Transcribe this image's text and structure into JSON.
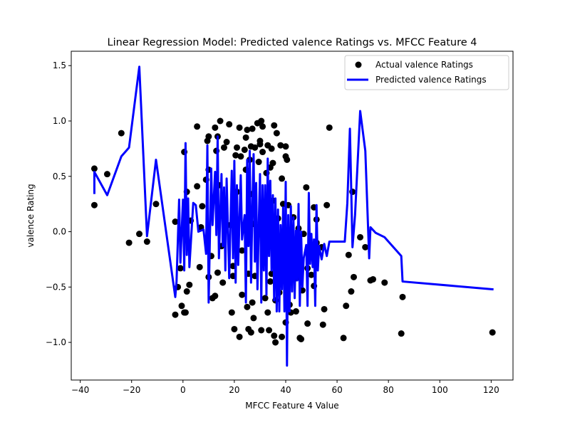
{
  "chart_data": {
    "type": "scatter",
    "title": "Linear Regression Model: Predicted valence Ratings vs. MFCC Feature 4",
    "xlabel": "MFCC Feature 4 Value",
    "ylabel": "valence Rating",
    "xlim": [
      -43.5,
      128.5
    ],
    "ylim": [
      -1.34,
      1.63
    ],
    "xticks": [
      -40,
      -20,
      0,
      20,
      40,
      60,
      80,
      100,
      120
    ],
    "yticks": [
      -1.0,
      -0.5,
      0.0,
      0.5,
      1.0,
      1.5
    ],
    "xtick_labels": [
      "−40",
      "−20",
      "0",
      "20",
      "40",
      "60",
      "80",
      "100",
      "120"
    ],
    "ytick_labels": [
      "−1.0",
      "−0.5",
      "0.0",
      "0.5",
      "1.0",
      "1.5"
    ],
    "grid": false,
    "legend_position": "top-right",
    "colors": {
      "actual": "#000000",
      "predicted": "#0000ff"
    },
    "series": [
      {
        "name": "Actual valence Ratings",
        "kind": "scatter",
        "points": [
          [
            -34.5,
            0.57
          ],
          [
            -34.5,
            0.24
          ],
          [
            -29.5,
            0.52
          ],
          [
            -24,
            0.89
          ],
          [
            -21,
            -0.1
          ],
          [
            -17,
            -0.02
          ],
          [
            -14,
            -0.09
          ],
          [
            -10.5,
            0.25
          ],
          [
            -3,
            0.09
          ],
          [
            -3,
            -0.75
          ],
          [
            -2,
            -0.5
          ],
          [
            -1,
            -0.33
          ],
          [
            -0.5,
            -0.67
          ],
          [
            0.5,
            -0.73
          ],
          [
            1,
            -0.73
          ],
          [
            1.5,
            -0.54
          ],
          [
            2.5,
            -0.48
          ],
          [
            0.5,
            0.72
          ],
          [
            1.5,
            0.36
          ],
          [
            3,
            0.1
          ],
          [
            5.5,
            0.95
          ],
          [
            5.5,
            0.41
          ],
          [
            6.5,
            -0.32
          ],
          [
            7,
            0.04
          ],
          [
            7.5,
            0.23
          ],
          [
            9.5,
            0.82
          ],
          [
            10,
            0.86
          ],
          [
            10,
            0.56
          ],
          [
            9,
            0.47
          ],
          [
            10,
            -0.41
          ],
          [
            11,
            -0.22
          ],
          [
            11.5,
            -0.6
          ],
          [
            12.5,
            -0.58
          ],
          [
            12.5,
            0.94
          ],
          [
            13,
            0.73
          ],
          [
            13.5,
            0.86
          ],
          [
            14,
            0.42
          ],
          [
            14.5,
            1.0
          ],
          [
            13.5,
            -0.37
          ],
          [
            15,
            -0.13
          ],
          [
            15.5,
            -0.46
          ],
          [
            16,
            0.76
          ],
          [
            17,
            0.81
          ],
          [
            18,
            0.97
          ],
          [
            18.5,
            0.06
          ],
          [
            19,
            -0.73
          ],
          [
            19.5,
            -0.31
          ],
          [
            19.5,
            -0.4
          ],
          [
            20,
            -0.88
          ],
          [
            20.5,
            0.69
          ],
          [
            21,
            0.76
          ],
          [
            21,
            0.36
          ],
          [
            22,
            0.94
          ],
          [
            22,
            -0.95
          ],
          [
            22.5,
            0.68
          ],
          [
            23,
            -0.17
          ],
          [
            23,
            -0.57
          ],
          [
            24,
            0.74
          ],
          [
            24.5,
            0.85
          ],
          [
            24.5,
            0.56
          ],
          [
            25,
            0.92
          ],
          [
            25,
            -0.68
          ],
          [
            25.5,
            -0.38
          ],
          [
            25.5,
            -0.88
          ],
          [
            26,
            0.65
          ],
          [
            26.5,
            0.77
          ],
          [
            26.5,
            -0.91
          ],
          [
            27,
            0.93
          ],
          [
            27,
            0.34
          ],
          [
            27,
            -0.64
          ],
          [
            27.5,
            0.07
          ],
          [
            27.5,
            -0.78
          ],
          [
            28,
            0.76
          ],
          [
            28,
            -0.4
          ],
          [
            29,
            0.98
          ],
          [
            29.5,
            0.63
          ],
          [
            30,
            0.79
          ],
          [
            30,
            0.82
          ],
          [
            30.5,
            1.0
          ],
          [
            30.5,
            -0.89
          ],
          [
            31,
            0.72
          ],
          [
            31,
            0.95
          ],
          [
            31,
            0.23
          ],
          [
            32,
            -0.6
          ],
          [
            32.5,
            0.53
          ],
          [
            33,
            0.78
          ],
          [
            33,
            -0.73
          ],
          [
            33.5,
            -0.89
          ],
          [
            34,
            0.58
          ],
          [
            34,
            -0.45
          ],
          [
            34.5,
            0.75
          ],
          [
            34.5,
            -0.38
          ],
          [
            35,
            0.62
          ],
          [
            35,
            0.28
          ],
          [
            35.5,
            0.96
          ],
          [
            35.5,
            -0.94
          ],
          [
            36,
            -0.62
          ],
          [
            36,
            -1.0
          ],
          [
            36.5,
            0.89
          ],
          [
            37,
            0.12
          ],
          [
            37.5,
            -0.55
          ],
          [
            38,
            0.78
          ],
          [
            38.5,
            0.48
          ],
          [
            38.5,
            -0.95
          ],
          [
            39,
            0.25
          ],
          [
            39,
            -0.06
          ],
          [
            40,
            0.68
          ],
          [
            40,
            0.77
          ],
          [
            40,
            -0.82
          ],
          [
            40.5,
            0.65
          ],
          [
            41,
            0.24
          ],
          [
            41.5,
            -0.66
          ],
          [
            42,
            -0.73
          ],
          [
            42.5,
            -0.15
          ],
          [
            43,
            0.13
          ],
          [
            44,
            -0.72
          ],
          [
            44,
            -0.42
          ],
          [
            45,
            0.03
          ],
          [
            45.5,
            -0.96
          ],
          [
            46,
            -0.97
          ],
          [
            46.5,
            -0.53
          ],
          [
            47,
            -0.02
          ],
          [
            48,
            0.4
          ],
          [
            48.5,
            -0.33
          ],
          [
            48.5,
            -0.83
          ],
          [
            50,
            -0.39
          ],
          [
            51,
            0.22
          ],
          [
            51,
            -0.49
          ],
          [
            52,
            0.11
          ],
          [
            52,
            -0.1
          ],
          [
            54,
            -0.14
          ],
          [
            54.5,
            -0.84
          ],
          [
            55,
            -0.7
          ],
          [
            56,
            0.24
          ],
          [
            57,
            0.94
          ],
          [
            62.5,
            -0.96
          ],
          [
            63.5,
            -0.67
          ],
          [
            64.5,
            -0.21
          ],
          [
            65.5,
            -0.54
          ],
          [
            66,
            0.36
          ],
          [
            66.5,
            -0.41
          ],
          [
            69,
            -0.05
          ],
          [
            71,
            -0.14
          ],
          [
            73,
            -0.44
          ],
          [
            74,
            -0.43
          ],
          [
            78.5,
            -0.46
          ],
          [
            85,
            -0.92
          ],
          [
            85.5,
            -0.59
          ],
          [
            120.5,
            -0.91
          ]
        ]
      },
      {
        "name": "Predicted valence Ratings",
        "kind": "line",
        "points": [
          [
            -34.5,
            0.35
          ],
          [
            -34.5,
            0.54
          ],
          [
            -29.5,
            0.33
          ],
          [
            -24,
            0.68
          ],
          [
            -21,
            0.76
          ],
          [
            -17,
            1.49
          ],
          [
            -14,
            -0.04
          ],
          [
            -10.5,
            0.65
          ],
          [
            -3,
            -0.59
          ],
          [
            -2.5,
            -0.45
          ],
          [
            -1.5,
            0.29
          ],
          [
            -1,
            -0.28
          ],
          [
            0,
            0.29
          ],
          [
            0.5,
            -0.35
          ],
          [
            1,
            0.8
          ],
          [
            1.5,
            -0.21
          ],
          [
            2,
            0.3
          ],
          [
            2.5,
            -0.32
          ],
          [
            4,
            0.26
          ],
          [
            5,
            0.24
          ],
          [
            6,
            0.0
          ],
          [
            8,
            0.02
          ],
          [
            9,
            -0.2
          ],
          [
            9.5,
            0.78
          ],
          [
            10,
            -0.64
          ],
          [
            11,
            0.57
          ],
          [
            11.5,
            0.06
          ],
          [
            12.5,
            0.54
          ],
          [
            13,
            -0.03
          ],
          [
            13.5,
            0.86
          ],
          [
            14,
            -0.24
          ],
          [
            15,
            0.52
          ],
          [
            15.5,
            -0.13
          ],
          [
            16,
            0.4
          ],
          [
            16.5,
            -0.35
          ],
          [
            17,
            0.48
          ],
          [
            18,
            -0.42
          ],
          [
            19,
            0.55
          ],
          [
            19.5,
            -0.24
          ],
          [
            20,
            0.64
          ],
          [
            20.5,
            -0.46
          ],
          [
            21,
            0.42
          ],
          [
            21.5,
            -0.3
          ],
          [
            22.5,
            0.51
          ],
          [
            23,
            -0.07
          ],
          [
            24,
            0.15
          ],
          [
            24.5,
            -0.64
          ],
          [
            25,
            0.65
          ],
          [
            25.5,
            -0.13
          ],
          [
            26,
            0.73
          ],
          [
            26.5,
            -0.46
          ],
          [
            27,
            0.19
          ],
          [
            27.5,
            0.7
          ],
          [
            28,
            -0.27
          ],
          [
            28.5,
            0.44
          ],
          [
            29,
            -0.52
          ],
          [
            29.5,
            0.06
          ],
          [
            30,
            0.52
          ],
          [
            30.5,
            -0.64
          ],
          [
            31,
            0.42
          ],
          [
            31.5,
            -0.35
          ],
          [
            32,
            0.42
          ],
          [
            32.5,
            -0.57
          ],
          [
            33,
            0.66
          ],
          [
            33.5,
            -0.22
          ],
          [
            34,
            0.46
          ],
          [
            34.5,
            -0.35
          ],
          [
            35,
            0.33
          ],
          [
            35.5,
            -0.62
          ],
          [
            36,
            0.3
          ],
          [
            36.5,
            -0.72
          ],
          [
            37,
            0.2
          ],
          [
            37.5,
            -0.72
          ],
          [
            38,
            0.06
          ],
          [
            38.5,
            -0.52
          ],
          [
            39,
            0.22
          ],
          [
            39.5,
            -0.72
          ],
          [
            40,
            0.45
          ],
          [
            40.5,
            -1.21
          ],
          [
            41,
            0.15
          ],
          [
            41.5,
            -0.72
          ],
          [
            42,
            0.23
          ],
          [
            42.5,
            -0.54
          ],
          [
            43,
            0.13
          ],
          [
            43.5,
            -0.6
          ],
          [
            44,
            0.01
          ],
          [
            44.5,
            -0.44
          ],
          [
            45,
            0.25
          ],
          [
            45.5,
            -0.67
          ],
          [
            46,
            0.0
          ],
          [
            46.5,
            -0.5
          ],
          [
            47,
            -0.24
          ],
          [
            48,
            -0.12
          ],
          [
            48.5,
            -0.67
          ],
          [
            49,
            0.35
          ],
          [
            49.5,
            -0.29
          ],
          [
            50,
            -0.02
          ],
          [
            50.5,
            -0.32
          ],
          [
            51,
            -0.07
          ],
          [
            51.5,
            -0.67
          ],
          [
            52,
            0.24
          ],
          [
            52.5,
            -0.35
          ],
          [
            53,
            -0.13
          ],
          [
            54,
            -0.25
          ],
          [
            55,
            -0.11
          ],
          [
            56,
            -0.22
          ],
          [
            57,
            -0.09
          ],
          [
            63,
            -0.09
          ],
          [
            64,
            0.26
          ],
          [
            65,
            0.93
          ],
          [
            66,
            -0.14
          ],
          [
            67,
            0.15
          ],
          [
            69,
            1.09
          ],
          [
            71,
            0.73
          ],
          [
            72.5,
            -0.24
          ],
          [
            73,
            0.04
          ],
          [
            75,
            -0.01
          ],
          [
            78.5,
            -0.05
          ],
          [
            85,
            -0.22
          ],
          [
            85.5,
            -0.45
          ],
          [
            120.5,
            -0.52
          ]
        ]
      }
    ]
  }
}
